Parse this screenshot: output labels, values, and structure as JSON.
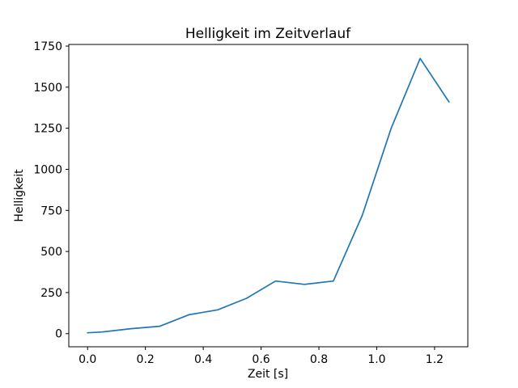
{
  "chart_data": {
    "type": "line",
    "title": "Helligkeit im Zeitverlauf",
    "xlabel": "Zeit [s]",
    "ylabel": "Helligkeit",
    "x": [
      0.0,
      0.05,
      0.15,
      0.25,
      0.35,
      0.45,
      0.55,
      0.65,
      0.75,
      0.85,
      0.95,
      1.05,
      1.15,
      1.25
    ],
    "y": [
      5,
      10,
      30,
      45,
      115,
      145,
      215,
      320,
      300,
      320,
      720,
      1250,
      1675,
      1410
    ],
    "xlim": [
      -0.065,
      1.315
    ],
    "ylim": [
      -80,
      1760
    ],
    "xticks": [
      {
        "value": 0.0,
        "label": "0.0"
      },
      {
        "value": 0.2,
        "label": "0.2"
      },
      {
        "value": 0.4,
        "label": "0.4"
      },
      {
        "value": 0.6,
        "label": "0.6"
      },
      {
        "value": 0.8,
        "label": "0.8"
      },
      {
        "value": 1.0,
        "label": "1.0"
      },
      {
        "value": 1.2,
        "label": "1.2"
      }
    ],
    "yticks": [
      {
        "value": 0,
        "label": "0"
      },
      {
        "value": 250,
        "label": "250"
      },
      {
        "value": 500,
        "label": "500"
      },
      {
        "value": 750,
        "label": "750"
      },
      {
        "value": 1000,
        "label": "1000"
      },
      {
        "value": 1250,
        "label": "1250"
      },
      {
        "value": 1500,
        "label": "1500"
      },
      {
        "value": 1750,
        "label": "1750"
      }
    ],
    "line_color": "#1f77b4",
    "axis_color": "#000000",
    "grid": false,
    "legend_position": "none"
  }
}
